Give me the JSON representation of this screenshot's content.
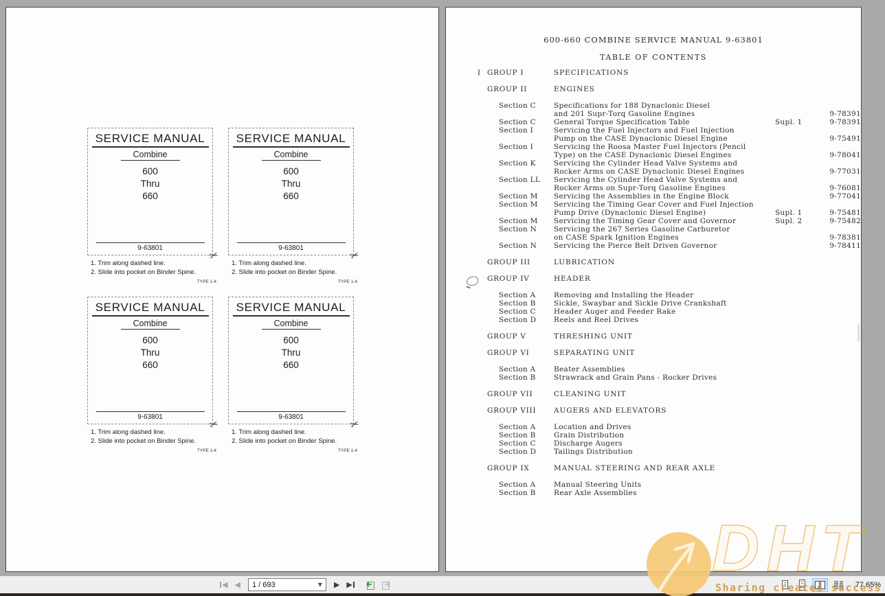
{
  "left_page": {
    "card_count": 4,
    "card": {
      "title": "SERVICE MANUAL",
      "subtitle": "Combine",
      "model_lines": [
        "600",
        "Thru",
        "660"
      ],
      "part_number": "9-63801",
      "scissors_glyph": "✂",
      "instructions": [
        "1. Trim along dashed line.",
        "2. Slide into pocket on Binder Spine."
      ],
      "type_label": "TYPE 1-4"
    }
  },
  "right_page": {
    "title": "600-660 COMBINE SERVICE MANUAL 9-63801",
    "subtitle": "TABLE OF CONTENTS",
    "toc": [
      {
        "k": "group",
        "l": "GROUP I",
        "t": "SPECIFICATIONS",
        "s": "",
        "n": "",
        "gap": false
      },
      {
        "k": "group",
        "l": "GROUP II",
        "t": "ENGINES",
        "s": "",
        "n": "",
        "gap": true
      },
      {
        "k": "section",
        "l": "Section C",
        "t": "Specifications for 188 Dynaclonic Diesel",
        "s": "",
        "n": "",
        "gap": true
      },
      {
        "k": "cont",
        "l": "",
        "t": "and 201 Supr-Torq Gasoline Engines",
        "s": "",
        "n": "9-78391",
        "gap": false
      },
      {
        "k": "section",
        "l": "Section C",
        "t": "General Torque Specification Table",
        "s": "Supl. 1",
        "n": "9-78391",
        "gap": false
      },
      {
        "k": "section",
        "l": "Section I",
        "t": "Servicing the Fuel Injectors and Fuel Injection",
        "s": "",
        "n": "",
        "gap": false
      },
      {
        "k": "cont",
        "l": "",
        "t": "Pump on the CASE Dynaclonic Diesel Engine",
        "s": "",
        "n": "9-75491",
        "gap": false
      },
      {
        "k": "section",
        "l": "Section I",
        "t": "Servicing the Roosa Master Fuel Injectors (Pencil",
        "s": "",
        "n": "",
        "gap": false
      },
      {
        "k": "cont",
        "l": "",
        "t": "Type) on the CASE Dynaclonic Diesel Engines",
        "s": "",
        "n": "9-78041",
        "gap": false
      },
      {
        "k": "section",
        "l": "Section K",
        "t": "Servicing the Cylinder Head Valve Systems and",
        "s": "",
        "n": "",
        "gap": false
      },
      {
        "k": "cont",
        "l": "",
        "t": "Rocker Arms on CASE Dynaclonic Diesel Engines",
        "s": "",
        "n": "9-77031",
        "gap": false
      },
      {
        "k": "section",
        "l": "Section LL",
        "t": "Servicing the Cylinder Head Valve Systems and",
        "s": "",
        "n": "",
        "gap": false
      },
      {
        "k": "cont",
        "l": "",
        "t": "Rocker Arms on Supr-Torq Gasoline Engines",
        "s": "",
        "n": "9-76081",
        "gap": false
      },
      {
        "k": "section",
        "l": "Section M",
        "t": "Servicing the Assemblies in the Engine Block",
        "s": "",
        "n": "9-77041",
        "gap": false
      },
      {
        "k": "section",
        "l": "Section M",
        "t": "Servicing the Timing Gear Cover and Fuel Injection",
        "s": "",
        "n": "",
        "gap": false
      },
      {
        "k": "cont",
        "l": "",
        "t": "Pump Drive (Dynaclonic Diesel Engine)",
        "s": "Supl. 1",
        "n": "9-75481",
        "gap": false
      },
      {
        "k": "section",
        "l": "Section M",
        "t": "Servicing the Timing Gear Cover and Governor",
        "s": "Supl. 2",
        "n": "9-75482",
        "gap": false
      },
      {
        "k": "section",
        "l": "Section N",
        "t": "Servicing the 267 Series Gasoline Carburetor",
        "s": "",
        "n": "",
        "gap": false
      },
      {
        "k": "cont",
        "l": "",
        "t": "on CASE Spark Ignition Engines",
        "s": "",
        "n": "9-78381",
        "gap": false
      },
      {
        "k": "section",
        "l": "Section N",
        "t": "Servicing the Pierce Belt Driven Governor",
        "s": "",
        "n": "9-78411",
        "gap": false
      },
      {
        "k": "group",
        "l": "GROUP III",
        "t": "LUBRICATION",
        "s": "",
        "n": "",
        "gap": true
      },
      {
        "k": "group",
        "l": "GROUP IV",
        "t": "HEADER",
        "s": "",
        "n": "",
        "gap": true
      },
      {
        "k": "section",
        "l": "Section A",
        "t": "Removing and Installing the Header",
        "s": "",
        "n": "",
        "gap": true
      },
      {
        "k": "section",
        "l": "Section B",
        "t": "Sickle, Swaybar and Sickle Drive Crankshaft",
        "s": "",
        "n": "",
        "gap": false
      },
      {
        "k": "section",
        "l": "Section C",
        "t": "Header Auger and Feeder Rake",
        "s": "",
        "n": "",
        "gap": false
      },
      {
        "k": "section",
        "l": "Section D",
        "t": "Reels and Reel Drives",
        "s": "",
        "n": "",
        "gap": false
      },
      {
        "k": "group",
        "l": "GROUP V",
        "t": "THRESHING UNIT",
        "s": "",
        "n": "",
        "gap": true
      },
      {
        "k": "group",
        "l": "GROUP VI",
        "t": "SEPARATING UNIT",
        "s": "",
        "n": "",
        "gap": true
      },
      {
        "k": "section",
        "l": "Section A",
        "t": "Beater Assemblies",
        "s": "",
        "n": "",
        "gap": true
      },
      {
        "k": "section",
        "l": "Section B",
        "t": "Strawrack and Grain Pans - Rocker Drives",
        "s": "",
        "n": "",
        "gap": false
      },
      {
        "k": "group",
        "l": "GROUP VII",
        "t": "CLEANING UNIT",
        "s": "",
        "n": "",
        "gap": true
      },
      {
        "k": "group",
        "l": "GROUP VIII",
        "t": "AUGERS AND ELEVATORS",
        "s": "",
        "n": "",
        "gap": true
      },
      {
        "k": "section",
        "l": "Section A",
        "t": "Location and Drives",
        "s": "",
        "n": "",
        "gap": true
      },
      {
        "k": "section",
        "l": "Section B",
        "t": "Grain Distribution",
        "s": "",
        "n": "",
        "gap": false
      },
      {
        "k": "section",
        "l": "Section C",
        "t": "Discharge Augers",
        "s": "",
        "n": "",
        "gap": false
      },
      {
        "k": "section",
        "l": "Section D",
        "t": "Tailings Distribution",
        "s": "",
        "n": "",
        "gap": false
      },
      {
        "k": "group",
        "l": "GROUP IX",
        "t": "MANUAL STEERING AND REAR AXLE",
        "s": "",
        "n": "",
        "gap": true
      },
      {
        "k": "section",
        "l": "Section A",
        "t": "Manual Steering Units",
        "s": "",
        "n": "",
        "gap": true
      },
      {
        "k": "section",
        "l": "Section B",
        "t": "Rear Axle Assemblies",
        "s": "",
        "n": "",
        "gap": false
      }
    ]
  },
  "toolbar": {
    "page_input": "1 / 693",
    "zoom_level": "77.65%",
    "icons": {
      "prev_glyph": "◀",
      "next_glyph": "▶",
      "dropdown_glyph": "▼"
    }
  },
  "watermark": {
    "brand": "DHT",
    "slogan": "Sharing creates success"
  },
  "colors": {
    "selected_layout_bg": "#cde2f6",
    "watermark_orange": "#eea93f",
    "history_arrow_green": "#2e8b2e"
  }
}
